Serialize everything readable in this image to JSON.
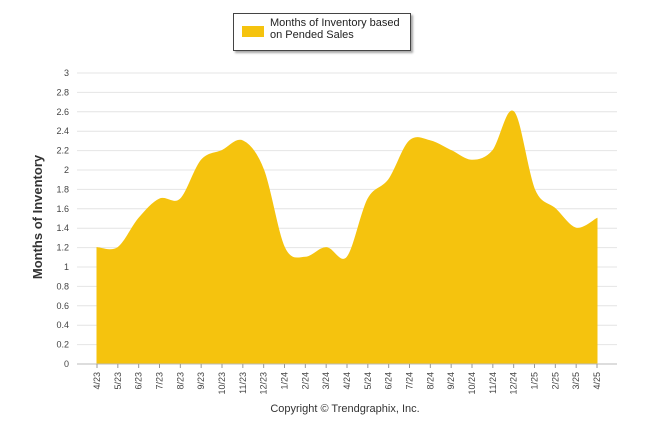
{
  "chart_data": {
    "type": "area",
    "legend": [
      "Months of Inventory based on Pended Sales"
    ],
    "ylabel": "Months of Inventory",
    "xlabel": "",
    "ylim": [
      0,
      3
    ],
    "yticks": [
      "0",
      "0.2",
      "0.4",
      "0.6",
      "0.8",
      "1",
      "1.2",
      "1.4",
      "1.6",
      "1.8",
      "2",
      "2.2",
      "2.4",
      "2.6",
      "2.8",
      "3"
    ],
    "categories": [
      "4/23",
      "5/23",
      "6/23",
      "7/23",
      "8/23",
      "9/23",
      "10/23",
      "11/23",
      "12/23",
      "1/24",
      "2/24",
      "3/24",
      "4/24",
      "5/24",
      "6/24",
      "7/24",
      "8/24",
      "9/24",
      "10/24",
      "11/24",
      "12/24",
      "1/25",
      "2/25",
      "3/25",
      "4/25"
    ],
    "series": [
      {
        "name": "Months of Inventory based on Pended Sales",
        "values": [
          1.2,
          1.2,
          1.5,
          1.7,
          1.7,
          2.1,
          2.2,
          2.3,
          2.0,
          1.2,
          1.1,
          1.2,
          1.1,
          1.7,
          1.9,
          2.3,
          2.3,
          2.2,
          2.1,
          2.2,
          2.6,
          1.8,
          1.6,
          1.4,
          1.5
        ]
      }
    ],
    "grid": true,
    "legend_position": "top"
  },
  "colors": {
    "area": "#f5c30e",
    "grid": "#e4e4e4",
    "axis": "#555555"
  },
  "legend_label": "Months of Inventory based on Pended Sales",
  "footer": "Copyright © Trendgraphix, Inc."
}
